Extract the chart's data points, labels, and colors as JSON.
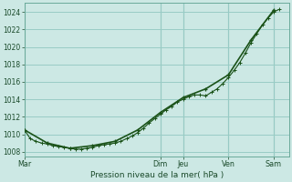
{
  "xlabel": "Pression niveau de la mer( hPa )",
  "bg_color": "#cce8e4",
  "grid_color": "#99ccc6",
  "line_color_dense": "#1a5218",
  "line_color_smooth": "#1a5218",
  "ylim": [
    1007.5,
    1025.0
  ],
  "yticks": [
    1008,
    1010,
    1012,
    1014,
    1016,
    1018,
    1020,
    1022,
    1024
  ],
  "day_labels": [
    "Mar",
    "Dim",
    "Jeu",
    "Ven",
    "Sam"
  ],
  "day_positions": [
    0,
    72,
    84,
    108,
    132
  ],
  "xmin": 0,
  "xmax": 140,
  "series_dense_x": [
    0,
    3,
    6,
    9,
    12,
    15,
    18,
    21,
    24,
    27,
    30,
    33,
    36,
    39,
    42,
    45,
    48,
    51,
    54,
    57,
    60,
    63,
    66,
    69,
    72,
    75,
    78,
    81,
    84,
    87,
    90,
    93,
    96,
    99,
    102,
    105,
    108,
    111,
    114,
    117,
    120,
    123,
    126,
    129,
    132,
    135
  ],
  "series_dense_y": [
    1010.5,
    1009.5,
    1009.2,
    1009.0,
    1008.9,
    1008.7,
    1008.6,
    1008.5,
    1008.4,
    1008.3,
    1008.3,
    1008.4,
    1008.5,
    1008.7,
    1008.8,
    1008.9,
    1009.0,
    1009.2,
    1009.5,
    1009.8,
    1010.2,
    1010.7,
    1011.3,
    1011.8,
    1012.3,
    1012.8,
    1013.2,
    1013.7,
    1014.0,
    1014.3,
    1014.5,
    1014.5,
    1014.4,
    1014.8,
    1015.2,
    1015.8,
    1016.5,
    1017.3,
    1018.2,
    1019.3,
    1020.5,
    1021.5,
    1022.5,
    1023.3,
    1024.0,
    1024.3
  ],
  "series_smooth_x": [
    0,
    12,
    24,
    36,
    48,
    60,
    72,
    84,
    96,
    108,
    120,
    132
  ],
  "series_smooth_y": [
    1010.5,
    1009.0,
    1008.4,
    1008.7,
    1009.2,
    1010.5,
    1012.5,
    1014.2,
    1015.2,
    1016.8,
    1020.8,
    1024.2
  ]
}
